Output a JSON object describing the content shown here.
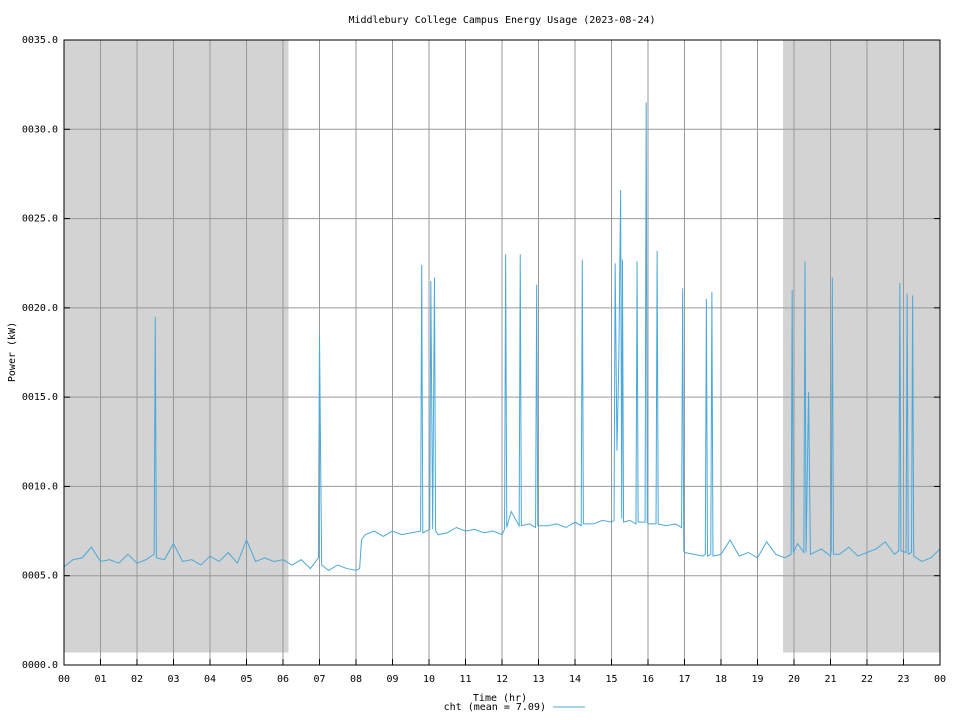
{
  "chart_data": {
    "type": "line",
    "title": "Middlebury College Campus Energy Usage (2023-08-24)",
    "x_label": "Time (hr)",
    "y_label": "Power (kW)",
    "xlim": [
      0,
      24
    ],
    "ylim": [
      0,
      35
    ],
    "xticks": [
      {
        "value": 0,
        "label": "00"
      },
      {
        "value": 1,
        "label": "01"
      },
      {
        "value": 2,
        "label": "02"
      },
      {
        "value": 3,
        "label": "03"
      },
      {
        "value": 4,
        "label": "04"
      },
      {
        "value": 5,
        "label": "05"
      },
      {
        "value": 6,
        "label": "06"
      },
      {
        "value": 7,
        "label": "07"
      },
      {
        "value": 8,
        "label": "08"
      },
      {
        "value": 9,
        "label": "09"
      },
      10,
      11,
      12,
      13,
      14,
      15,
      16,
      17,
      18,
      19,
      20,
      21,
      22,
      23,
      {
        "value": 24,
        "label": "00"
      }
    ],
    "yticks": [
      {
        "value": 0,
        "label": "0000.0"
      },
      {
        "value": 5,
        "label": "0005.0"
      },
      {
        "value": 10,
        "label": "0010.0"
      },
      {
        "value": 15,
        "label": "0015.0"
      },
      {
        "value": 20,
        "label": "0020.0"
      },
      {
        "value": 25,
        "label": "0025.0"
      },
      {
        "value": 30,
        "label": "0030.0"
      },
      {
        "value": 35,
        "label": "0035.0"
      }
    ],
    "grid": true,
    "shaded_regions": [
      {
        "xmin": 0,
        "xmax": 6.15,
        "ymin": 0.7,
        "ymax": 35
      },
      {
        "xmin": 19.7,
        "xmax": 24,
        "ymin": 0.7,
        "ymax": 35
      }
    ],
    "shade_color": "#d3d3d3",
    "x": [
      0,
      0.25,
      0.5,
      0.75,
      1,
      1.25,
      1.5,
      1.75,
      2,
      2.25,
      2.47,
      2.5,
      2.53,
      2.75,
      3,
      3.25,
      3.5,
      3.75,
      4,
      4.25,
      4.5,
      4.75,
      5,
      5.25,
      5.5,
      5.75,
      6,
      6.25,
      6.5,
      6.75,
      6.97,
      7.0,
      7.03,
      7.06,
      7.25,
      7.5,
      7.75,
      8,
      8.1,
      8.15,
      8.25,
      8.5,
      8.75,
      9,
      9.25,
      9.5,
      9.77,
      9.8,
      9.83,
      10.02,
      10.05,
      10.1,
      10.15,
      10.18,
      10.25,
      10.5,
      10.75,
      11,
      11.25,
      11.5,
      11.75,
      12,
      12.07,
      12.1,
      12.13,
      12.25,
      12.47,
      12.5,
      12.53,
      12.75,
      12.92,
      12.95,
      12.98,
      13.25,
      13.5,
      13.75,
      14,
      14.17,
      14.2,
      14.23,
      14.5,
      14.75,
      15,
      15.07,
      15.1,
      15.15,
      15.2,
      15.25,
      15.28,
      15.3,
      15.33,
      15.5,
      15.67,
      15.7,
      15.73,
      15.92,
      15.95,
      15.98,
      16,
      16.22,
      16.25,
      16.28,
      16.5,
      16.75,
      16.92,
      16.95,
      16.98,
      17.0,
      17.25,
      17.5,
      17.57,
      17.6,
      17.63,
      17.72,
      17.75,
      17.78,
      18,
      18.25,
      18.5,
      18.75,
      19,
      19.25,
      19.5,
      19.75,
      19.92,
      19.95,
      19.98,
      20.1,
      20.27,
      20.3,
      20.33,
      20.4,
      20.45,
      20.75,
      21,
      21.02,
      21.05,
      21.08,
      21.25,
      21.5,
      21.75,
      22,
      22.25,
      22.5,
      22.75,
      22.87,
      22.9,
      22.93,
      23.07,
      23.1,
      23.13,
      23.22,
      23.25,
      23.28,
      23.5,
      23.75,
      24
    ],
    "series": [
      {
        "name": "cht (mean = 7.09)",
        "color": "#4aa8dc",
        "values": [
          5.5,
          5.9,
          6.0,
          6.6,
          5.8,
          5.9,
          5.7,
          6.2,
          5.7,
          5.9,
          6.2,
          19.5,
          6.0,
          5.9,
          6.8,
          5.8,
          5.9,
          5.6,
          6.1,
          5.8,
          6.3,
          5.7,
          7.0,
          5.8,
          6.0,
          5.8,
          5.9,
          5.6,
          5.9,
          5.4,
          6.0,
          18.5,
          11.8,
          5.6,
          5.3,
          5.6,
          5.4,
          5.3,
          5.4,
          7.0,
          7.3,
          7.5,
          7.2,
          7.5,
          7.3,
          7.4,
          7.5,
          22.4,
          7.4,
          7.6,
          21.5,
          7.6,
          21.7,
          7.5,
          7.3,
          7.4,
          7.7,
          7.5,
          7.6,
          7.4,
          7.5,
          7.3,
          7.6,
          23.0,
          7.7,
          8.6,
          7.8,
          23.0,
          7.8,
          7.9,
          7.7,
          21.3,
          7.8,
          7.8,
          7.9,
          7.7,
          8.0,
          7.8,
          22.7,
          7.9,
          7.9,
          8.1,
          8.0,
          8.1,
          22.5,
          12.0,
          17.0,
          26.6,
          8.2,
          22.7,
          8.0,
          8.1,
          7.9,
          22.6,
          8.0,
          8.0,
          31.5,
          8.0,
          7.9,
          7.9,
          23.2,
          7.9,
          7.8,
          7.9,
          7.7,
          21.1,
          6.4,
          6.3,
          6.2,
          6.1,
          6.2,
          20.5,
          6.1,
          6.2,
          20.9,
          6.1,
          6.2,
          7.0,
          6.1,
          6.3,
          6.0,
          6.9,
          6.2,
          6.0,
          6.2,
          21.0,
          6.3,
          6.8,
          6.3,
          22.6,
          6.3,
          15.3,
          6.2,
          6.5,
          6.1,
          6.4,
          21.7,
          6.2,
          6.2,
          6.6,
          6.1,
          6.3,
          6.5,
          6.9,
          6.2,
          6.4,
          21.4,
          6.4,
          6.3,
          20.8,
          6.2,
          6.3,
          20.7,
          6.1,
          5.8,
          6.0,
          6.5
        ]
      }
    ]
  }
}
